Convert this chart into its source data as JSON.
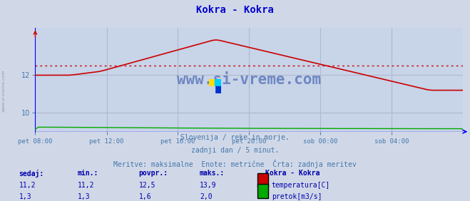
{
  "title": "Kokra - Kokra",
  "title_color": "#0000cc",
  "bg_color": "#d0d8e8",
  "plot_bg_color": "#d0d8e8",
  "chart_bg_color": "#c8d4e8",
  "grid_color": "#b0b8cc",
  "x_labels": [
    "pet 08:00",
    "pet 12:00",
    "pet 16:00",
    "pet 20:00",
    "sob 00:00",
    "sob 04:00"
  ],
  "x_ticks_norm": [
    0.0,
    0.167,
    0.333,
    0.5,
    0.667,
    0.833
  ],
  "ylim": [
    9.0,
    14.5
  ],
  "y_ticks": [
    10,
    12
  ],
  "temp_color": "#cc0000",
  "flow_color": "#00aa00",
  "avg_line_color": "#cc0000",
  "avg_temp": 12.5,
  "watermark": "www.si-vreme.com",
  "watermark_color": "#3355aa",
  "subtitle1": "Slovenija / reke in morje.",
  "subtitle2": "zadnji dan / 5 minut.",
  "subtitle3": "Meritve: maksimalne  Enote: metrične  Črta: zadnja meritev",
  "subtitle_color": "#4477aa",
  "legend_title": "Kokra - Kokra",
  "legend_title_color": "#0000aa",
  "legend_items": [
    "temperatura[C]",
    "pretok[m3/s]"
  ],
  "legend_colors": [
    "#cc0000",
    "#00aa00"
  ],
  "table_headers": [
    "sedaj:",
    "min.:",
    "povpr.:",
    "maks.:"
  ],
  "table_temp": [
    "11,2",
    "11,2",
    "12,5",
    "13,9"
  ],
  "table_flow": [
    "1,3",
    "1,3",
    "1,6",
    "2,0"
  ],
  "table_color": "#0000aa",
  "axis_label_color": "#4477aa",
  "axis_color": "#0000ff",
  "arrow_color": "#cc0000",
  "n_points": 288,
  "left_label_color": "#888888"
}
